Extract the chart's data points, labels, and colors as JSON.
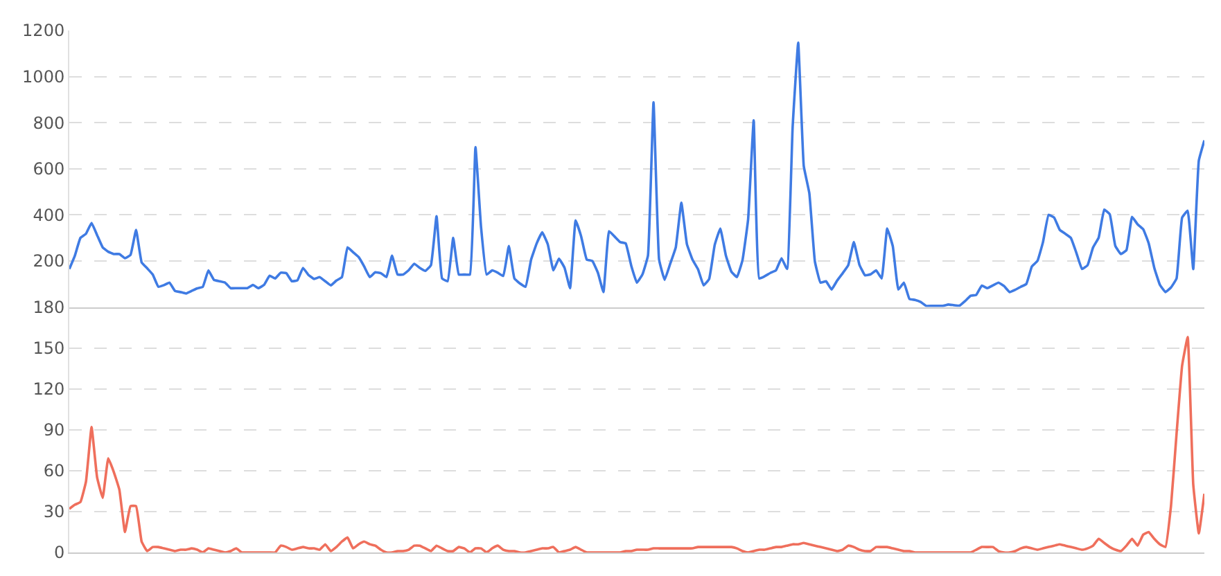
{
  "chart_data": [
    {
      "type": "line",
      "categories": [
        null,
        null,
        null,
        null,
        null,
        null,
        null,
        null,
        null,
        null,
        null,
        null,
        null,
        null,
        null,
        null,
        null,
        null,
        null,
        null,
        null,
        null,
        null,
        null,
        null,
        null,
        null,
        null,
        null,
        null,
        null,
        null,
        null,
        null,
        null,
        null,
        null,
        null,
        null,
        null,
        null,
        null,
        null,
        null,
        null,
        null,
        null,
        null,
        null,
        null,
        null,
        null,
        null,
        null,
        null,
        null,
        null,
        null,
        null,
        null,
        null,
        null,
        null,
        null,
        null,
        null,
        null,
        null,
        null,
        null,
        null,
        null,
        null,
        null,
        null,
        null,
        null,
        null,
        null,
        null,
        null,
        null,
        null,
        null,
        null,
        null,
        null,
        null,
        null,
        null,
        null,
        null,
        null,
        null,
        null,
        null,
        null,
        null,
        null,
        null,
        null,
        null,
        null,
        null,
        null,
        null,
        null,
        null,
        null,
        null,
        null,
        null,
        null,
        null,
        null,
        null,
        null,
        null,
        null,
        null,
        null,
        null,
        null,
        null,
        null,
        null,
        null,
        null,
        null,
        null,
        null,
        null,
        null,
        null,
        null,
        null,
        null,
        null,
        null,
        null,
        null,
        null,
        null,
        null,
        null,
        null,
        null,
        null,
        null,
        null,
        null,
        null,
        null,
        null,
        null,
        null,
        null,
        null,
        null,
        null,
        null,
        null,
        null,
        null,
        null,
        null,
        null,
        null,
        null,
        null,
        null,
        null,
        null,
        null,
        null,
        null,
        null,
        null,
        null,
        null,
        null,
        null,
        null,
        null,
        null,
        null,
        null,
        null,
        null,
        null,
        null,
        null,
        null,
        null,
        null,
        null,
        null,
        null,
        null,
        null,
        null,
        null,
        null,
        null,
        null
      ],
      "ylim": [
        0,
        1200
      ],
      "yticks": [
        200,
        400,
        600,
        800,
        1000,
        1200
      ],
      "grid": "y",
      "tick_labels": "y",
      "marker": "none",
      "line_style": "solid",
      "series": [
        {
          "color": "#3f7be3",
          "values": [
            165,
            223,
            300,
            318,
            365,
            312,
            259,
            240,
            230,
            230,
            212,
            226,
            335,
            194,
            168,
            141,
            88,
            95,
            106,
            70,
            65,
            59,
            70,
            81,
            88,
            159,
            118,
            112,
            106,
            82,
            82,
            82,
            82,
            96,
            82,
            96,
            136,
            124,
            149,
            147,
            112,
            116,
            170,
            139,
            122,
            130,
            112,
            94,
            115,
            130,
            259,
            238,
            217,
            176,
            130,
            151,
            147,
            130,
            223,
            141,
            141,
            160,
            188,
            170,
            157,
            182,
            394,
            124,
            112,
            300,
            141,
            141,
            141,
            694,
            347,
            141,
            159,
            149,
            135,
            265,
            124,
            102,
            88,
            206,
            276,
            324,
            272,
            159,
            210,
            171,
            82,
            376,
            306,
            206,
            200,
            149,
            65,
            329,
            306,
            282,
            276,
            179,
            106,
            141,
            223,
            888,
            206,
            118,
            188,
            259,
            453,
            273,
            206,
            164,
            94,
            122,
            270,
            341,
            224,
            153,
            130,
            205,
            380,
            810,
            124,
            134,
            148,
            159,
            212,
            165,
            779,
            1147,
            612,
            494,
            198,
            106,
            112,
            76,
            115,
            147,
            182,
            282,
            184,
            138,
            142,
            159,
            124,
            341,
            264,
            76,
            106,
            35,
            31,
            22,
            5,
            5,
            5,
            5,
            11,
            8,
            6,
            26,
            49,
            53,
            93,
            82,
            94,
            106,
            91,
            65,
            75,
            88,
            100,
            176,
            200,
            282,
            400,
            388,
            335,
            318,
            300,
            235,
            165,
            181,
            259,
            301,
            423,
            402,
            265,
            230,
            247,
            391,
            359,
            338,
            276,
            170,
            97,
            65,
            85,
            124,
            388,
            418,
            165,
            635,
            723
          ]
        }
      ]
    },
    {
      "type": "line",
      "categories": [
        null,
        null,
        null,
        null,
        null,
        null,
        null,
        null,
        null,
        null,
        null,
        null,
        null,
        null,
        null,
        null,
        null,
        null,
        null,
        null,
        null,
        null,
        null,
        null,
        null,
        null,
        null,
        null,
        null,
        null,
        null,
        null,
        null,
        null,
        null,
        null,
        null,
        null,
        null,
        null,
        null,
        null,
        null,
        null,
        null,
        null,
        null,
        null,
        null,
        null,
        null,
        null,
        null,
        null,
        null,
        null,
        null,
        null,
        null,
        null,
        null,
        null,
        null,
        null,
        null,
        null,
        null,
        null,
        null,
        null,
        null,
        null,
        null,
        null,
        null,
        null,
        null,
        null,
        null,
        null,
        null,
        null,
        null,
        null,
        null,
        null,
        null,
        null,
        null,
        null,
        null,
        null,
        null,
        null,
        null,
        null,
        null,
        null,
        null,
        null,
        null,
        null,
        null,
        null,
        null,
        null,
        null,
        null,
        null,
        null,
        null,
        null,
        null,
        null,
        null,
        null,
        null,
        null,
        null,
        null,
        null,
        null,
        null,
        null,
        null,
        null,
        null,
        null,
        null,
        null,
        null,
        null,
        null,
        null,
        null,
        null,
        null,
        null,
        null,
        null,
        null,
        null,
        null,
        null,
        null,
        null,
        null,
        null,
        null,
        null,
        null,
        null,
        null,
        null,
        null,
        null,
        null,
        null,
        null,
        null,
        null,
        null,
        null,
        null,
        null,
        null,
        null,
        null,
        null,
        null,
        null,
        null,
        null,
        null,
        null,
        null,
        null,
        null,
        null,
        null,
        null,
        null,
        null,
        null,
        null,
        null,
        null,
        null,
        null,
        null,
        null,
        null,
        null,
        null,
        null,
        null,
        null,
        null,
        null,
        null,
        null,
        null,
        null,
        null,
        null
      ],
      "ylim": [
        0,
        180
      ],
      "yticks": [
        0,
        30,
        60,
        90,
        120,
        150,
        180
      ],
      "grid": "y",
      "tick_labels": "y",
      "marker": "none",
      "line_style": "solid",
      "series": [
        {
          "color": "#ef6f5c",
          "values": [
            32,
            35,
            37,
            52,
            92,
            55,
            40,
            69,
            59,
            46,
            15,
            34,
            34,
            8,
            1,
            4,
            4,
            3,
            2,
            1,
            2,
            2,
            3,
            2,
            0,
            3,
            2,
            1,
            0,
            1,
            3,
            0,
            0,
            0,
            0,
            0,
            0,
            0,
            5,
            4,
            2,
            3,
            4,
            3,
            3,
            2,
            6,
            1,
            4,
            8,
            11,
            3,
            6,
            8,
            6,
            5,
            2,
            0,
            0,
            1,
            1,
            2,
            5,
            5,
            3,
            1,
            5,
            3,
            1,
            1,
            4,
            3,
            0,
            3,
            3,
            0,
            3,
            5,
            2,
            1,
            1,
            0,
            0,
            1,
            2,
            3,
            3,
            4,
            0,
            1,
            2,
            4,
            2,
            0,
            0,
            0,
            0,
            0,
            0,
            0,
            1,
            1,
            2,
            2,
            2,
            3,
            3,
            3,
            3,
            3,
            3,
            3,
            3,
            4,
            4,
            4,
            4,
            4,
            4,
            4,
            3,
            1,
            0,
            1,
            2,
            2,
            3,
            4,
            4,
            5,
            6,
            6,
            7,
            6,
            5,
            4,
            3,
            2,
            1,
            2,
            5,
            4,
            2,
            1,
            1,
            4,
            4,
            4,
            3,
            2,
            1,
            1,
            0,
            0,
            0,
            0,
            0,
            0,
            0,
            0,
            0,
            0,
            0,
            2,
            4,
            4,
            4,
            1,
            0,
            0,
            1,
            3,
            4,
            3,
            2,
            3,
            4,
            5,
            6,
            5,
            4,
            3,
            2,
            3,
            5,
            10,
            7,
            4,
            2,
            1,
            5,
            10,
            5,
            13,
            15,
            10,
            6,
            4,
            34,
            87,
            137,
            158,
            50,
            14,
            43
          ]
        }
      ]
    }
  ]
}
